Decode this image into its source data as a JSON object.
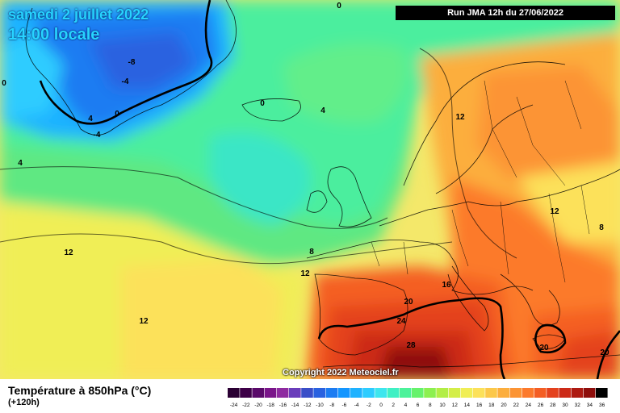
{
  "title": {
    "date_line": "samedi 2 juillet 2022",
    "time_line": "14:00 locale"
  },
  "run_label": "Run JMA 12h du 27/06/2022",
  "copyright": "Copyright 2022 Meteociel.fr",
  "variable_title": "Température à 850hPa (°C)",
  "lead_time": "(+120h)",
  "legend": {
    "values": [
      "-24",
      "-22",
      "-20",
      "-18",
      "-16",
      "-14",
      "-12",
      "-10",
      "-8",
      "-6",
      "-4",
      "-2",
      "0",
      "2",
      "4",
      "6",
      "8",
      "10",
      "12",
      "14",
      "16",
      "18",
      "20",
      "22",
      "24",
      "26",
      "28",
      "30",
      "32",
      "34",
      "36"
    ],
    "colors": [
      "#2a0033",
      "#3e0048",
      "#5a0a6a",
      "#7a158a",
      "#8e2aa0",
      "#6a3dbb",
      "#3a4ec8",
      "#2a62e0",
      "#1c7cf2",
      "#1496ff",
      "#1fb2ff",
      "#2dccff",
      "#3ee6ee",
      "#40f0c4",
      "#4cf29a",
      "#66f26c",
      "#8cf050",
      "#b2ee46",
      "#d4ee48",
      "#f0ee56",
      "#fce15a",
      "#fcc84a",
      "#fcae3e",
      "#fc9434",
      "#fc7a2c",
      "#f45e24",
      "#e4421e",
      "#cc2a18",
      "#ad1a12",
      "#8e0e0c",
      "#000000"
    ]
  },
  "contour_labels": [
    {
      "text": "0"
    },
    {
      "text": "-8"
    },
    {
      "text": "-4"
    },
    {
      "text": "0"
    },
    {
      "text": "-4"
    },
    {
      "text": "0"
    },
    {
      "text": "0"
    },
    {
      "text": "4"
    },
    {
      "text": "4"
    },
    {
      "text": "12"
    },
    {
      "text": "12"
    },
    {
      "text": "12"
    },
    {
      "text": "8"
    },
    {
      "text": "12"
    },
    {
      "text": "8"
    },
    {
      "text": "16"
    },
    {
      "text": "20"
    },
    {
      "text": "24"
    },
    {
      "text": "28"
    },
    {
      "text": "20"
    },
    {
      "text": "20"
    },
    {
      "text": "12"
    },
    {
      "text": "4"
    }
  ]
}
